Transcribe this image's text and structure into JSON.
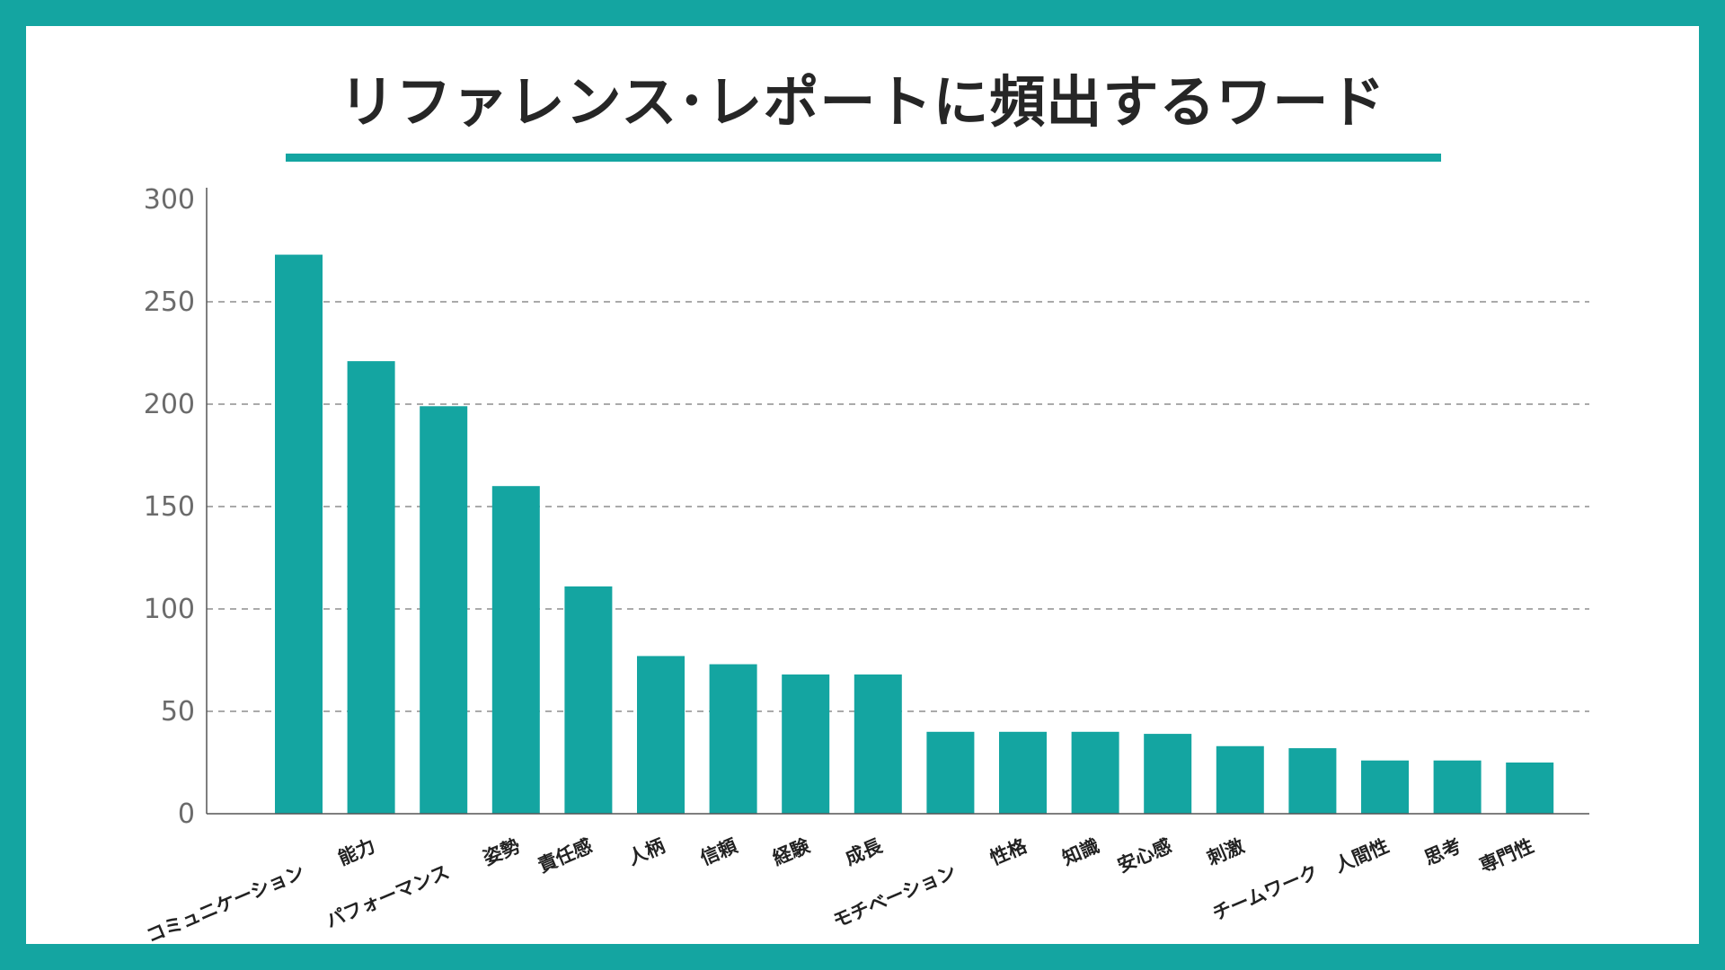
{
  "colors": {
    "frame": "#14a5a1",
    "bar": "#14a5a1",
    "title": "#262626",
    "axis": "#555555",
    "grid": "#777777",
    "tick": "#6b6b6b"
  },
  "chart_data": {
    "type": "bar",
    "title": "リファレンス･レポートに頻出するワード",
    "xlabel": "",
    "ylabel": "",
    "ylim": [
      0,
      300
    ],
    "yticks": [
      0,
      50,
      100,
      150,
      200,
      250,
      300
    ],
    "grid": true,
    "categories": [
      "コミュニケーション",
      "能力",
      "パフォーマンス",
      "姿勢",
      "責任感",
      "人柄",
      "信頼",
      "経験",
      "成長",
      "モチベーション",
      "性格",
      "知識",
      "安心感",
      "刺激",
      "チームワーク",
      "人間性",
      "思考",
      "専門性"
    ],
    "values": [
      273,
      221,
      199,
      160,
      111,
      77,
      73,
      68,
      68,
      40,
      40,
      40,
      39,
      33,
      32,
      26,
      26,
      25
    ]
  }
}
